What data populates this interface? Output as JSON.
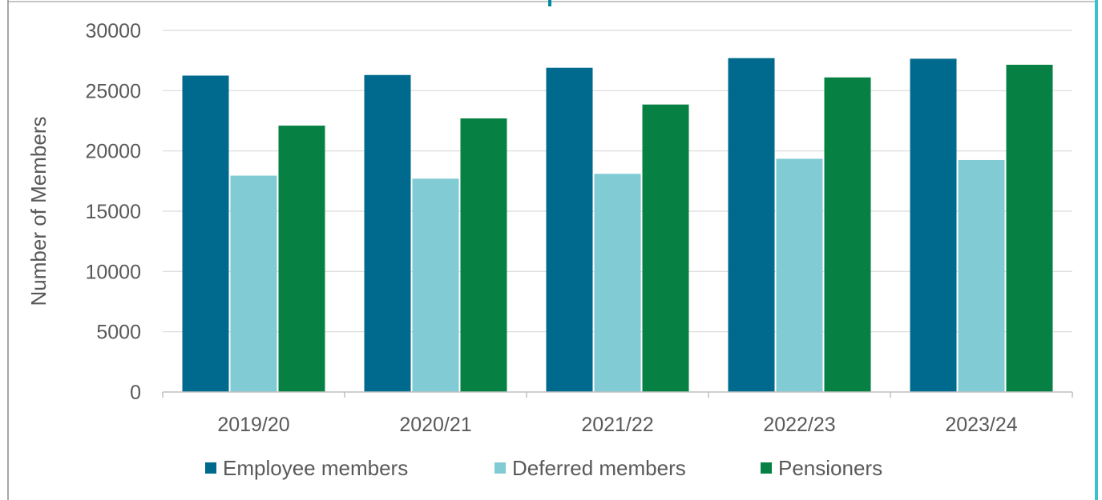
{
  "chart_data": {
    "type": "bar",
    "title": "",
    "xlabel": "",
    "ylabel": "Number of Members",
    "categories": [
      "2019/20",
      "2020/21",
      "2021/22",
      "2022/23",
      "2023/24"
    ],
    "series": [
      {
        "name": "Employee members",
        "color": "#006a8e",
        "values": [
          26250,
          26300,
          26900,
          27700,
          27650
        ]
      },
      {
        "name": "Deferred members",
        "color": "#80cbd4",
        "values": [
          17950,
          17700,
          18100,
          19350,
          19250
        ]
      },
      {
        "name": "Pensioners",
        "color": "#078143",
        "values": [
          22100,
          22700,
          23850,
          26100,
          27150
        ]
      }
    ],
    "ylim": [
      0,
      30000
    ],
    "yticks": [
      "0",
      "5000",
      "10000",
      "15000",
      "20000",
      "25000",
      "30000"
    ],
    "grid": true,
    "legend_position": "bottom"
  },
  "colors": {
    "frame": "#8c8c8c",
    "accent_edge": "#3cc0d0",
    "top_tab": "#008aa0",
    "text": "#595959",
    "grid": "#d9d9d9"
  }
}
